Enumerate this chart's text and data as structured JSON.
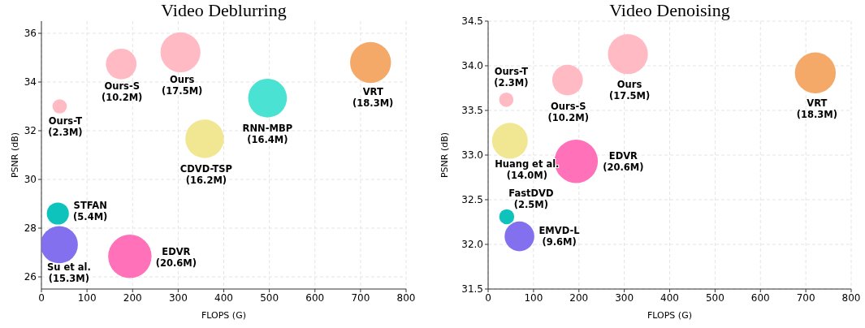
{
  "chart_data": [
    {
      "type": "bubble",
      "title": "Video Deblurring",
      "xlabel": "FLOPS (G)",
      "ylabel": "PSNR (dB)",
      "xlim": [
        0,
        800
      ],
      "xticks": [
        0,
        100,
        200,
        300,
        400,
        500,
        600,
        700,
        800
      ],
      "ylim": [
        25.5,
        36.5
      ],
      "yticks": [
        26,
        28,
        30,
        32,
        34,
        36
      ],
      "grid": true,
      "series": [
        {
          "name": "Ours-T (2.3M)",
          "color": "#ffb6c1",
          "x": [
            40
          ],
          "values": [
            33.0
          ],
          "sizes": [
            0.11
          ]
        },
        {
          "name": "Ours-S (10.2M)",
          "color": "#ffb6c1",
          "x": [
            175
          ],
          "values": [
            34.74
          ],
          "sizes": [
            0.5
          ]
        },
        {
          "name": "Ours (17.5M)",
          "color": "#ffb6c1",
          "x": [
            305
          ],
          "values": [
            35.22
          ],
          "sizes": [
            0.85
          ]
        },
        {
          "name": "VRT (18.3M)",
          "color": "#f4a460",
          "x": [
            722
          ],
          "values": [
            34.8
          ],
          "sizes": [
            0.89
          ]
        },
        {
          "name": "RNN-MBP (16.4M)",
          "color": "#40e0d0",
          "x": [
            496
          ],
          "values": [
            33.34
          ],
          "sizes": [
            0.8
          ]
        },
        {
          "name": "CDVD-TSP (16.2M)",
          "color": "#f0e68c",
          "x": [
            358
          ],
          "values": [
            31.67
          ],
          "sizes": [
            0.79
          ]
        },
        {
          "name": "STFAN (5.4M)",
          "color": "#00c0b8",
          "x": [
            36
          ],
          "values": [
            28.6
          ],
          "sizes": [
            0.26
          ]
        },
        {
          "name": "Su et al. (15.3M)",
          "color": "#7b68ee",
          "x": [
            39
          ],
          "values": [
            27.32
          ],
          "sizes": [
            0.74
          ]
        },
        {
          "name": "EDVR (20.6M)",
          "color": "#ff69b4",
          "x": [
            194
          ],
          "values": [
            26.84
          ],
          "sizes": [
            1
          ]
        }
      ]
    },
    {
      "type": "bubble",
      "title": "Video Denoising",
      "xlabel": "FLOPS (G)",
      "ylabel": "PSNR (dB)",
      "xlim": [
        0,
        800
      ],
      "xticks": [
        0,
        100,
        200,
        300,
        400,
        500,
        600,
        700,
        800
      ],
      "ylim": [
        31.5,
        34.5
      ],
      "yticks": [
        {
          "value": 31.5,
          "label": "31.5"
        },
        {
          "value": 32,
          "label": "32.0"
        },
        {
          "value": 32.5,
          "label": "32.5"
        },
        {
          "value": 33,
          "label": "33.0"
        },
        {
          "value": 33.5,
          "label": "33.5"
        },
        {
          "value": 34,
          "label": "34.0"
        },
        {
          "value": 34.5,
          "label": "34.5"
        }
      ],
      "grid": true,
      "series": [
        {
          "name": "Ours-T (2.3M)",
          "color": "#ffb6c1",
          "x": [
            40
          ],
          "values": [
            33.62
          ],
          "sizes": [
            0.11
          ]
        },
        {
          "name": "Ours-S (10.2M)",
          "color": "#ffb6c1",
          "x": [
            175
          ],
          "values": [
            33.84
          ],
          "sizes": [
            0.5
          ]
        },
        {
          "name": "Ours (17.5M)",
          "color": "#ffb6c1",
          "x": [
            308
          ],
          "values": [
            34.13
          ],
          "sizes": [
            0.85
          ]
        },
        {
          "name": "VRT (18.3M)",
          "color": "#f4a460",
          "x": [
            721
          ],
          "values": [
            33.92
          ],
          "sizes": [
            0.89
          ]
        },
        {
          "name": "Huang et al. (14.0M)",
          "color": "#f0e68c",
          "x": [
            48
          ],
          "values": [
            33.16
          ],
          "sizes": [
            0.68
          ]
        },
        {
          "name": "EDVR (20.6M)",
          "color": "#ff69b4",
          "x": [
            194
          ],
          "values": [
            32.93
          ],
          "sizes": [
            1
          ]
        },
        {
          "name": "FastDVD (2.5M)",
          "color": "#00c0b8",
          "x": [
            41
          ],
          "values": [
            32.31
          ],
          "sizes": [
            0.12
          ]
        },
        {
          "name": "EMVD-L (9.6M)",
          "color": "#7b68ee",
          "x": [
            69
          ],
          "values": [
            32.09
          ],
          "sizes": [
            0.47
          ]
        }
      ]
    }
  ]
}
